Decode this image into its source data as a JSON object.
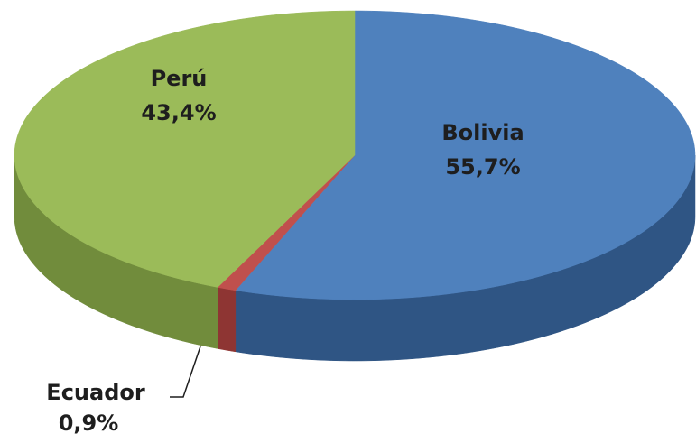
{
  "chart_data": {
    "type": "pie3d",
    "categories": [
      "Bolivia",
      "Ecuador",
      "Perú"
    ],
    "values": [
      55.7,
      0.9,
      43.4
    ],
    "value_labels": [
      "55,7%",
      "0,9%",
      "43,4%"
    ],
    "colors": [
      "#4f81bd",
      "#c0504d",
      "#9bbb59"
    ],
    "side_colors": [
      "#2f5584",
      "#8e3533",
      "#718c3c"
    ]
  }
}
